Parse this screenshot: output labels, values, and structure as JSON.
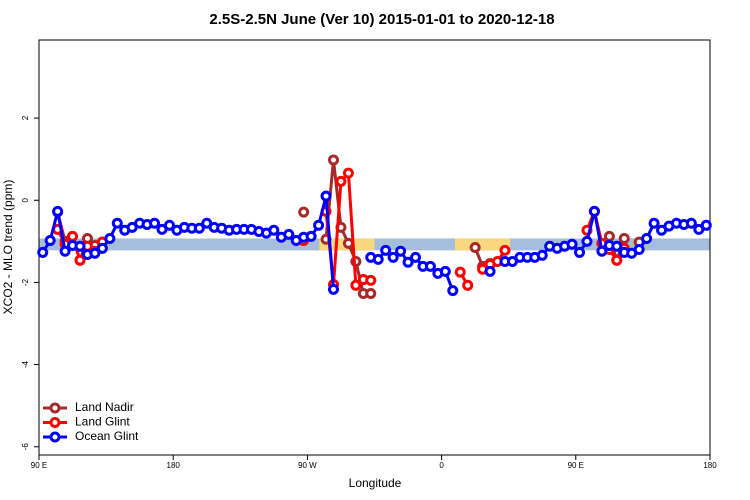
{
  "chart_data": {
    "type": "line",
    "title": "2.5S-2.5N June (Ver 10)   2015-01-01 to 2020-12-18",
    "xlabel": "Longitude",
    "ylabel": "XCO2 - MLO trend (ppm)",
    "xlim": [
      90,
      540
    ],
    "ylim": [
      -6.2,
      3.9
    ],
    "xticks": [
      {
        "value": 90,
        "label": "90 E"
      },
      180,
      {
        "value": 270,
        "label": "90 W"
      },
      {
        "value": 360,
        "label": "0"
      },
      {
        "value": 450,
        "label": "90 E"
      },
      {
        "value": 540,
        "label": "180"
      }
    ],
    "yticks": [
      -6,
      -4,
      -2,
      0,
      2
    ],
    "legend": "lower left",
    "reference_band": {
      "y": [
        -1.22,
        -0.93
      ],
      "color": "#a6bddb"
    },
    "land_spans": {
      "x": [
        [
          278,
          315
        ],
        [
          369,
          406
        ]
      ],
      "color": "#f9d77e"
    },
    "x": [
      92.5,
      97.5,
      102.5,
      107.5,
      112.5,
      117.5,
      122.5,
      127.5,
      132.5,
      137.5,
      142.5,
      147.5,
      152.5,
      157.5,
      162.5,
      167.5,
      172.5,
      177.5,
      182.5,
      187.5,
      192.5,
      197.5,
      202.5,
      207.5,
      212.5,
      217.5,
      222.5,
      227.5,
      232.5,
      237.5,
      242.5,
      247.5,
      252.5,
      257.5,
      262.5,
      267.5,
      272.5,
      277.5,
      282.5,
      287.5,
      292.5,
      297.5,
      302.5,
      307.5,
      312.5,
      317.5,
      322.5,
      327.5,
      332.5,
      337.5,
      342.5,
      347.5,
      352.5,
      357.5,
      362.5,
      367.5,
      372.5,
      377.5,
      382.5,
      387.5,
      392.5,
      397.5,
      402.5,
      407.5,
      412.5,
      417.5,
      422.5,
      427.5,
      432.5,
      437.5,
      442.5,
      447.5,
      452.5,
      457.5,
      462.5,
      467.5,
      472.5,
      477.5,
      482.5,
      487.5,
      492.5,
      497.5,
      502.5,
      507.5,
      512.5,
      517.5,
      522.5,
      527.5,
      532.5,
      537.5
    ],
    "series": [
      {
        "name": "Land Nadir",
        "color": "#a52a2a",
        "values": [
          null,
          null,
          -0.29,
          -1.0,
          -0.88,
          -1.46,
          -0.93,
          -1.1,
          -1.02,
          null,
          null,
          null,
          null,
          null,
          null,
          null,
          null,
          null,
          null,
          null,
          null,
          null,
          null,
          null,
          null,
          null,
          null,
          null,
          null,
          null,
          null,
          null,
          null,
          null,
          null,
          -0.29,
          null,
          null,
          -0.95,
          0.98,
          -0.66,
          -1.05,
          -1.49,
          -2.27,
          -2.27,
          null,
          null,
          null,
          null,
          null,
          null,
          null,
          null,
          null,
          null,
          null,
          null,
          null,
          -1.15,
          -1.61,
          -1.54,
          null,
          null,
          null,
          null,
          null,
          null,
          null,
          null,
          null,
          null,
          null,
          null,
          null,
          -0.27,
          null,
          -0.88,
          -1.46,
          -0.93,
          null,
          -1.02,
          null,
          null,
          null,
          null,
          null,
          null,
          null,
          null,
          null
        ]
      },
      {
        "name": "Land Glint",
        "color": "#ff0000",
        "values": [
          null,
          null,
          -0.71,
          -1.07,
          -0.88,
          -1.46,
          -1.12,
          -1.24,
          -1.02,
          null,
          null,
          null,
          null,
          null,
          null,
          null,
          null,
          null,
          null,
          null,
          null,
          null,
          null,
          null,
          null,
          null,
          null,
          null,
          null,
          null,
          null,
          null,
          null,
          null,
          null,
          -0.98,
          null,
          null,
          -0.27,
          -2.05,
          0.46,
          0.66,
          -2.07,
          -1.93,
          -1.95,
          null,
          null,
          null,
          null,
          null,
          null,
          null,
          null,
          null,
          null,
          null,
          -1.75,
          -2.07,
          null,
          -1.68,
          -1.56,
          -1.49,
          -1.22,
          null,
          null,
          null,
          null,
          null,
          null,
          null,
          null,
          null,
          null,
          -0.73,
          -0.27,
          -1.05,
          -1.2,
          -1.46,
          -1.17,
          null,
          null,
          null,
          null,
          null,
          null,
          null,
          null,
          null,
          null,
          null
        ]
      },
      {
        "name": "Ocean Glint",
        "color": "#0000ff",
        "values": [
          -1.27,
          -0.98,
          -0.27,
          -1.24,
          -1.1,
          -1.12,
          -1.32,
          -1.29,
          -1.17,
          -0.93,
          -0.56,
          -0.73,
          -0.66,
          -0.56,
          -0.59,
          -0.56,
          -0.71,
          -0.61,
          -0.73,
          -0.66,
          -0.68,
          -0.68,
          -0.56,
          -0.66,
          -0.68,
          -0.73,
          -0.71,
          -0.71,
          -0.71,
          -0.76,
          -0.8,
          -0.73,
          -0.9,
          -0.83,
          -0.98,
          -0.9,
          -0.88,
          -0.61,
          0.1,
          -2.17,
          null,
          null,
          null,
          null,
          -1.39,
          -1.44,
          -1.22,
          -1.39,
          -1.24,
          -1.51,
          -1.39,
          -1.61,
          -1.61,
          -1.78,
          -1.73,
          -2.2,
          null,
          null,
          null,
          null,
          -1.73,
          null,
          -1.49,
          -1.49,
          -1.39,
          -1.39,
          -1.39,
          -1.34,
          -1.12,
          -1.17,
          -1.12,
          -1.07,
          -1.27,
          -1.0,
          -0.27,
          -1.24,
          -1.1,
          -1.12,
          -1.27,
          -1.29,
          -1.2,
          -0.93,
          -0.56,
          -0.73,
          -0.63,
          -0.56,
          -0.59,
          -0.56,
          -0.71,
          -0.61
        ]
      }
    ]
  }
}
